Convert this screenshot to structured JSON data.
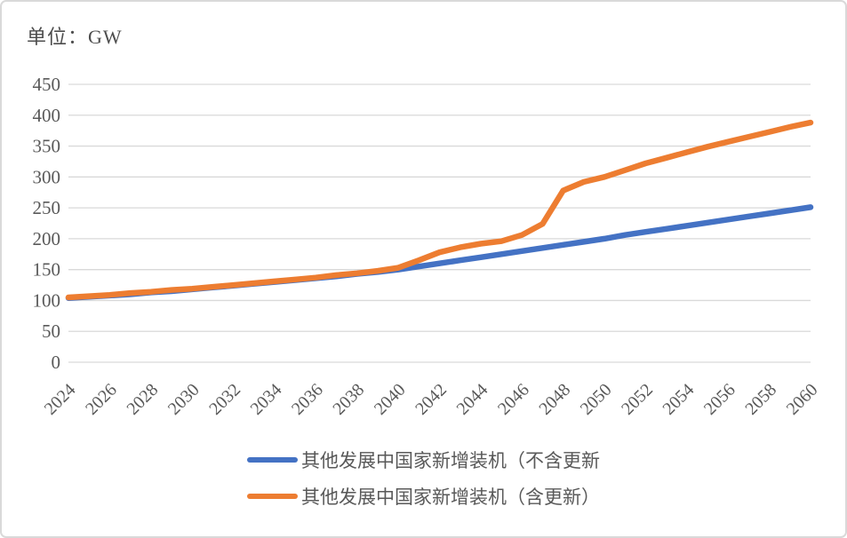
{
  "chart": {
    "unit_label": "单位：GW",
    "colors": {
      "series_excluding_renewal": "#4472C4",
      "series_including_renewal": "#ED7D31",
      "gridline": "#d9d9d9",
      "axis_text": "#595959",
      "title_text": "#4d4d4d",
      "card_border": "#d9d9d9",
      "background": "#ffffff"
    },
    "legend": [
      {
        "label": "其他发展中国家新增装机（不含更新",
        "color": "#4472C4"
      },
      {
        "label": "其他发展中国家新增装机（含更新）",
        "color": "#ED7D31"
      }
    ]
  },
  "chart_data": {
    "type": "line",
    "title": "单位：GW",
    "xlabel": "",
    "ylabel": "GW",
    "ylim": [
      0,
      450
    ],
    "y_ticks": [
      0,
      50,
      100,
      150,
      200,
      250,
      300,
      350,
      400,
      450
    ],
    "x_tick_labels": [
      "2024",
      "2026",
      "2028",
      "2030",
      "2032",
      "2034",
      "2036",
      "2038",
      "2040",
      "2042",
      "2044",
      "2046",
      "2048",
      "2050",
      "2052",
      "2054",
      "2056",
      "2058",
      "2060"
    ],
    "x": [
      2024,
      2025,
      2026,
      2027,
      2028,
      2029,
      2030,
      2031,
      2032,
      2033,
      2034,
      2035,
      2036,
      2037,
      2038,
      2039,
      2040,
      2041,
      2042,
      2043,
      2044,
      2045,
      2046,
      2047,
      2048,
      2049,
      2050,
      2051,
      2052,
      2053,
      2054,
      2055,
      2056,
      2057,
      2058,
      2059,
      2060
    ],
    "grid": "horizontal",
    "legend_position": "bottom",
    "series": [
      {
        "name": "其他发展中国家新增装机（不含更新",
        "color": "#4472C4",
        "values": [
          104,
          106,
          108,
          110,
          113,
          115,
          118,
          121,
          124,
          127,
          130,
          133,
          136,
          139,
          143,
          146,
          150,
          155,
          160,
          165,
          170,
          175,
          180,
          185,
          190,
          195,
          200,
          206,
          211,
          216,
          221,
          226,
          231,
          236,
          241,
          246,
          251
        ]
      },
      {
        "name": "其他发展中国家新增装机（含更新）",
        "color": "#ED7D31",
        "values": [
          105,
          107,
          109,
          112,
          114,
          117,
          119,
          122,
          125,
          128,
          131,
          134,
          137,
          141,
          144,
          148,
          153,
          165,
          178,
          186,
          192,
          196,
          206,
          224,
          278,
          292,
          300,
          311,
          322,
          331,
          340,
          349,
          357,
          365,
          373,
          381,
          388
        ]
      }
    ]
  }
}
